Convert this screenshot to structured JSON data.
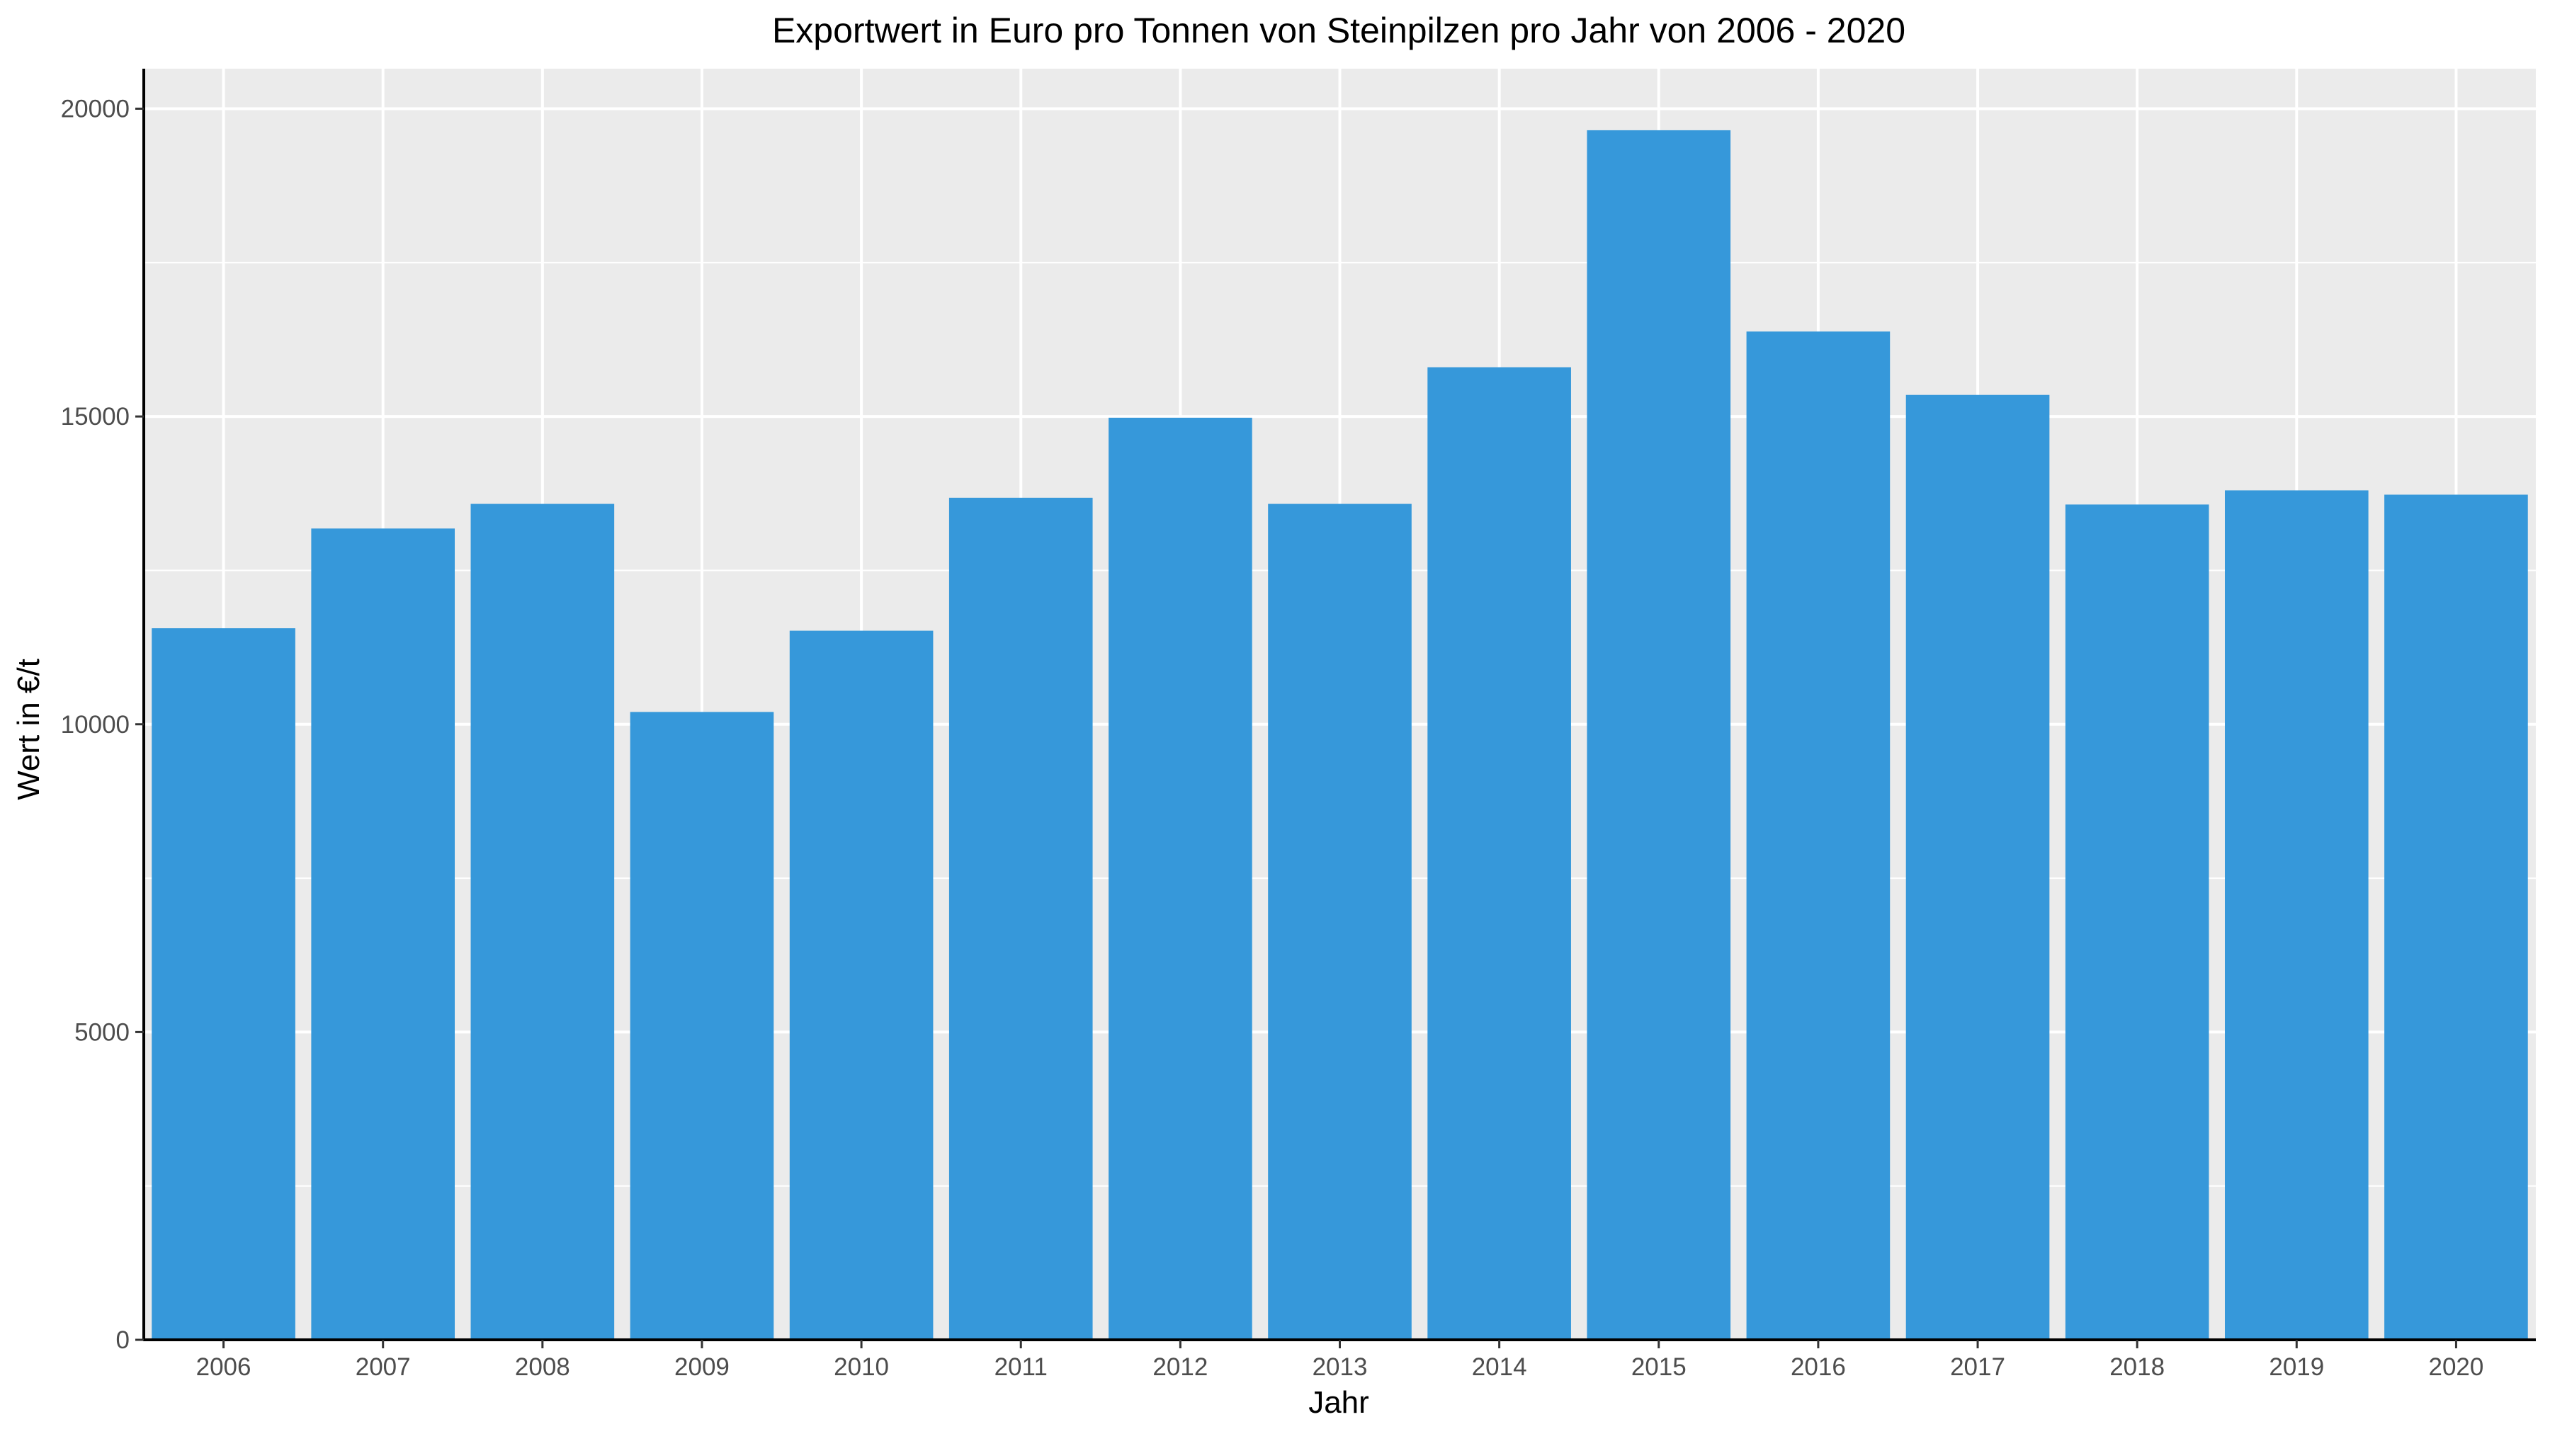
{
  "chart_data": {
    "type": "bar",
    "title": "Exportwert in Euro pro Tonnen von Steinpilzen pro Jahr von 2006 - 2020",
    "xlabel": "Jahr",
    "ylabel": "Wert in €/t",
    "categories": [
      "2006",
      "2007",
      "2008",
      "2009",
      "2010",
      "2011",
      "2012",
      "2013",
      "2014",
      "2015",
      "2016",
      "2017",
      "2018",
      "2019",
      "2020"
    ],
    "values": [
      11560,
      13180,
      13580,
      10200,
      11520,
      13680,
      14980,
      13580,
      15800,
      19650,
      16380,
      15350,
      13570,
      13800,
      13730
    ],
    "ylim": [
      0,
      20650
    ],
    "yticks": [
      0,
      5000,
      10000,
      15000,
      20000
    ],
    "y_tick_labels": [
      "0",
      "5000",
      "10000",
      "15000",
      "20000"
    ],
    "grid": true,
    "legend": "none",
    "colors": {
      "bar": "#3698DA",
      "panel_background": "#EBEBEB",
      "grid_line": "#FFFFFF",
      "axis_line": "#000000",
      "tick_label": "#4D4D4D",
      "title_text": "#000000"
    }
  }
}
